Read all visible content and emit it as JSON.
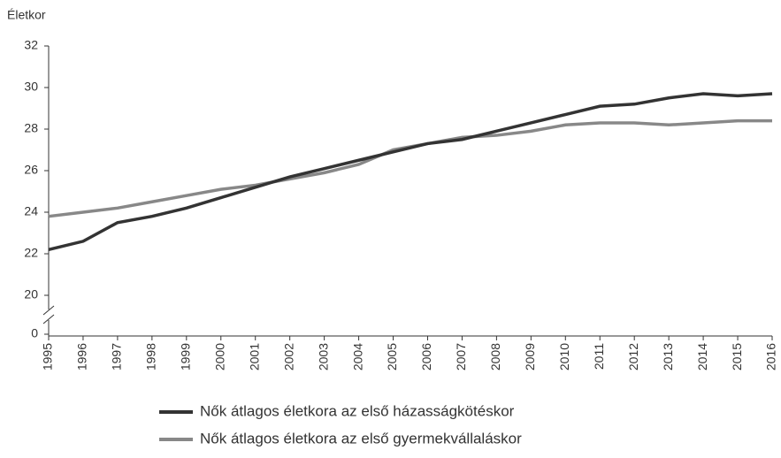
{
  "chart_data": {
    "type": "line",
    "y_label": "Életkor",
    "x": [
      "1995",
      "1996",
      "1997",
      "1998",
      "1999",
      "2000",
      "2001",
      "2002",
      "2003",
      "2004",
      "2005",
      "2006",
      "2007",
      "2008",
      "2009",
      "2010",
      "2011",
      "2012",
      "2013",
      "2014",
      "2015",
      "2016"
    ],
    "series": [
      {
        "name": "Nők átlagos életkora az első házasságkötéskor",
        "color": "#333333",
        "values": [
          22.2,
          22.6,
          23.5,
          23.8,
          24.2,
          24.7,
          25.2,
          25.7,
          26.1,
          26.5,
          26.9,
          27.3,
          27.5,
          27.9,
          28.3,
          28.7,
          29.1,
          29.2,
          29.5,
          29.7,
          29.6,
          29.7
        ]
      },
      {
        "name": "Nők átlagos életkora az első gyermekvállaláskor",
        "color": "#888888",
        "values": [
          23.8,
          24.0,
          24.2,
          24.5,
          24.8,
          25.1,
          25.3,
          25.6,
          25.9,
          26.3,
          27.0,
          27.3,
          27.6,
          27.7,
          27.9,
          28.2,
          28.3,
          28.3,
          28.2,
          28.3,
          28.4,
          28.4
        ]
      }
    ],
    "ylim": [
      0,
      32
    ],
    "yticks": [
      0,
      20,
      22,
      24,
      26,
      28,
      30,
      32
    ],
    "y_break": [
      0,
      20
    ],
    "grid": false
  }
}
